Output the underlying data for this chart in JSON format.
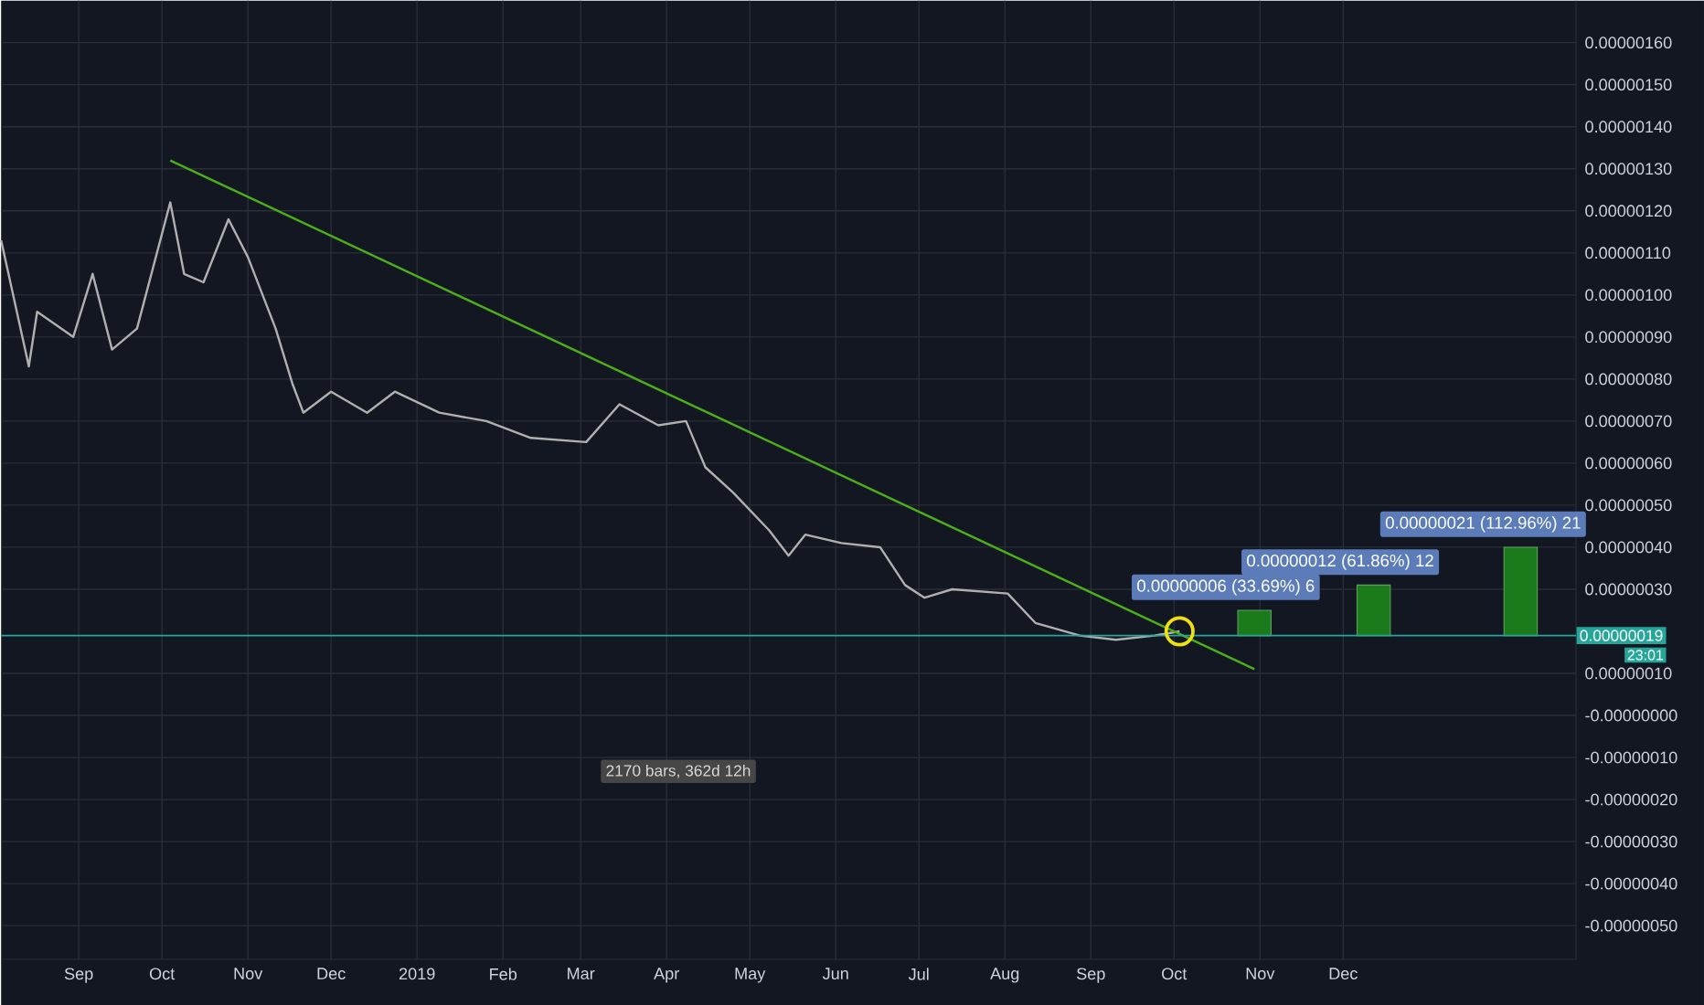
{
  "chart_data": {
    "type": "line",
    "ylim": [
      -5.8e-07,
      1.7e-06
    ],
    "yticks": [
      {
        "value": 1.6e-06,
        "label": "0.00000160"
      },
      {
        "value": 1.5e-06,
        "label": "0.00000150"
      },
      {
        "value": 1.4e-06,
        "label": "0.00000140"
      },
      {
        "value": 1.3e-06,
        "label": "0.00000130"
      },
      {
        "value": 1.2e-06,
        "label": "0.00000120"
      },
      {
        "value": 1.1e-06,
        "label": "0.00000110"
      },
      {
        "value": 1e-06,
        "label": "0.00000100"
      },
      {
        "value": 9e-07,
        "label": "0.00000090"
      },
      {
        "value": 8e-07,
        "label": "0.00000080"
      },
      {
        "value": 7e-07,
        "label": "0.00000070"
      },
      {
        "value": 6e-07,
        "label": "0.00000060"
      },
      {
        "value": 5e-07,
        "label": "0.00000050"
      },
      {
        "value": 4e-07,
        "label": "0.00000040"
      },
      {
        "value": 3e-07,
        "label": "0.00000030"
      },
      {
        "value": 1e-07,
        "label": "0.00000010"
      },
      {
        "value": 0,
        "label": "-0.00000000"
      },
      {
        "value": -1e-07,
        "label": "-0.00000010"
      },
      {
        "value": -2e-07,
        "label": "-0.00000020"
      },
      {
        "value": -3e-07,
        "label": "-0.00000030"
      },
      {
        "value": -4e-07,
        "label": "-0.00000040"
      },
      {
        "value": -5e-07,
        "label": "-0.00000050"
      }
    ],
    "xlim": [
      "2018-08-04",
      "2020-02-23"
    ],
    "xticks": [
      {
        "value": "2018-09-01",
        "label": "Sep"
      },
      {
        "value": "2018-10-01",
        "label": "Oct"
      },
      {
        "value": "2018-11-01",
        "label": "Nov"
      },
      {
        "value": "2018-12-01",
        "label": "Dec"
      },
      {
        "value": "2019-01-01",
        "label": "2019"
      },
      {
        "value": "2019-02-01",
        "label": "Feb"
      },
      {
        "value": "2019-03-01",
        "label": "Mar"
      },
      {
        "value": "2019-04-01",
        "label": "Apr"
      },
      {
        "value": "2019-05-01",
        "label": "May"
      },
      {
        "value": "2019-06-01",
        "label": "Jun"
      },
      {
        "value": "2019-07-01",
        "label": "Jul"
      },
      {
        "value": "2019-08-01",
        "label": "Aug"
      },
      {
        "value": "2019-09-01",
        "label": "Sep"
      },
      {
        "value": "2019-10-01",
        "label": "Oct"
      },
      {
        "value": "2019-11-01",
        "label": "Nov"
      },
      {
        "value": "2019-12-01",
        "label": "Dec"
      }
    ],
    "grid": true,
    "series": [
      {
        "color": "#b0b0b0",
        "x": [
          "2018-08-04",
          "2018-08-14",
          "2018-08-17",
          "2018-08-30",
          "2018-09-06",
          "2018-09-13",
          "2018-09-22",
          "2018-10-04",
          "2018-10-09",
          "2018-10-16",
          "2018-10-25",
          "2018-11-01",
          "2018-11-11",
          "2018-11-17",
          "2018-11-21",
          "2018-12-01",
          "2018-12-14",
          "2018-12-24",
          "2019-01-09",
          "2019-01-26",
          "2019-02-11",
          "2019-03-03",
          "2019-03-15",
          "2019-03-29",
          "2019-04-08",
          "2019-04-15",
          "2019-04-25",
          "2019-05-08",
          "2019-05-15",
          "2019-05-21",
          "2019-06-03",
          "2019-06-17",
          "2019-06-26",
          "2019-07-03",
          "2019-07-13",
          "2019-08-02",
          "2019-08-12",
          "2019-08-28",
          "2019-09-10",
          "2019-09-24",
          "2019-10-03"
        ],
        "values": [
          1.13e-06,
          8.3e-07,
          9.6e-07,
          9e-07,
          1.05e-06,
          8.7e-07,
          9.2e-07,
          1.22e-06,
          1.05e-06,
          1.03e-06,
          1.18e-06,
          1.09e-06,
          9.2e-07,
          7.9e-07,
          7.2e-07,
          7.7e-07,
          7.2e-07,
          7.7e-07,
          7.2e-07,
          7e-07,
          6.6e-07,
          6.5e-07,
          7.4e-07,
          6.9e-07,
          7e-07,
          5.9e-07,
          5.3e-07,
          4.4e-07,
          3.8e-07,
          4.3e-07,
          4.1e-07,
          4e-07,
          3.1e-07,
          2.8e-07,
          3e-07,
          2.9e-07,
          2.2e-07,
          1.9e-07,
          1.8e-07,
          1.9e-07,
          2e-07
        ]
      },
      {
        "type": "line",
        "color": "#4caf1a",
        "x": [
          "2018-10-04",
          "2019-10-30"
        ],
        "values": [
          1.32e-06,
          1.1e-07
        ]
      },
      {
        "type": "scatter",
        "color": "#f0e010",
        "marker": "circle",
        "x": [
          "2019-10-03"
        ],
        "values": [
          2e-07
        ]
      },
      {
        "type": "bar",
        "color": "#1b7a1b",
        "x": [
          "2019-10-30",
          "2019-12-12",
          "2020-02-03"
        ],
        "base": [
          1.9e-07,
          1.9e-07,
          1.9e-07
        ],
        "values": [
          6e-08,
          1.2e-07,
          2.1e-07
        ]
      }
    ],
    "ref_lines": [
      {
        "axis": "y",
        "value": 1.9e-07,
        "label": "0.00000019",
        "color": "#26a69a"
      }
    ],
    "annotations": [
      {
        "text": "0.00000006 (33.69%) 6",
        "x": "2019-10-30",
        "y": 2.5e-07
      },
      {
        "text": "0.00000012 (61.86%) 12",
        "x": "2019-12-12",
        "y": 3.1e-07
      },
      {
        "text": "0.00000021 (112.96%) 21",
        "x": "2020-02-03",
        "y": 4e-07
      },
      "2170 bars, 362d 12h",
      "23:01"
    ]
  }
}
